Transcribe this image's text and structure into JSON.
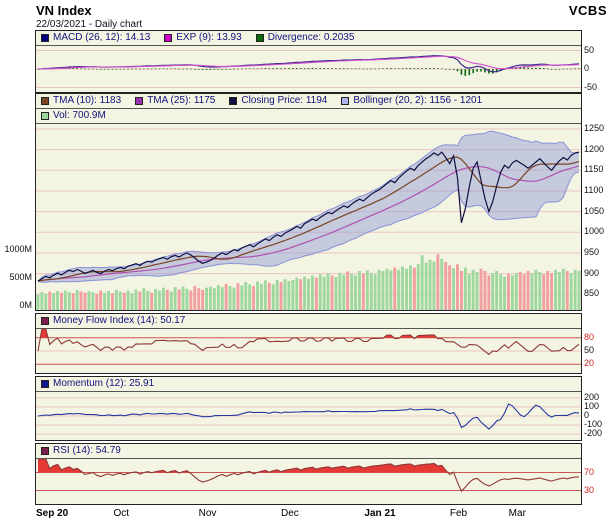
{
  "header": {
    "title": "VN Index",
    "subtitle": "22/03/2021 - Daily chart",
    "brand": "VCBS"
  },
  "x_axis": {
    "labels": [
      {
        "text": "Sep 20",
        "bold": true,
        "index": 0
      },
      {
        "text": "Oct",
        "bold": false,
        "index": 22
      },
      {
        "text": "Nov",
        "bold": false,
        "index": 44
      },
      {
        "text": "Dec",
        "bold": false,
        "index": 65
      },
      {
        "text": "Jan 21",
        "bold": true,
        "index": 88
      },
      {
        "text": "Feb",
        "bold": false,
        "index": 108
      },
      {
        "text": "Mar",
        "bold": false,
        "index": 123
      }
    ]
  },
  "chart_data": {
    "type": "line",
    "title": "VN Index - Daily chart",
    "as_of": "22/03/2021",
    "n_points": 139,
    "close": [
      882,
      888,
      893,
      890,
      896,
      901,
      897,
      903,
      908,
      905,
      910,
      906,
      900,
      904,
      908,
      903,
      900,
      906,
      910,
      907,
      912,
      915,
      912,
      918,
      921,
      924,
      920,
      926,
      930,
      928,
      933,
      936,
      939,
      935,
      941,
      944,
      940,
      946,
      950,
      945,
      938,
      930,
      925,
      928,
      932,
      938,
      945,
      950,
      946,
      952,
      958,
      955,
      962,
      966,
      970,
      965,
      972,
      978,
      984,
      980,
      988,
      994,
      990,
      998,
      1003,
      1008,
      1014,
      1010,
      1021,
      1026,
      1032,
      1028,
      1036,
      1042,
      1048,
      1045,
      1052,
      1058,
      1064,
      1060,
      1068,
      1075,
      1080,
      1076,
      1084,
      1092,
      1098,
      1103,
      1110,
      1118,
      1125,
      1120,
      1131,
      1140,
      1148,
      1155,
      1150,
      1162,
      1170,
      1178,
      1184,
      1192,
      1186,
      1194,
      1181,
      1166,
      1185,
      1131,
      1023,
      1057,
      1110,
      1155,
      1170,
      1126,
      1082,
      1050,
      1075,
      1112,
      1145,
      1162,
      1155,
      1168,
      1174,
      1168,
      1162,
      1155,
      1162,
      1170,
      1178,
      1168,
      1158,
      1150,
      1162,
      1173,
      1181,
      1175,
      1186,
      1192,
      1194
    ],
    "volume_millions": [
      280,
      320,
      290,
      330,
      300,
      340,
      310,
      350,
      320,
      300,
      360,
      330,
      310,
      340,
      320,
      290,
      350,
      310,
      340,
      300,
      360,
      330,
      310,
      345,
      300,
      370,
      330,
      390,
      340,
      310,
      380,
      350,
      400,
      360,
      330,
      410,
      370,
      420,
      380,
      350,
      430,
      390,
      360,
      400,
      420,
      390,
      450,
      410,
      470,
      430,
      400,
      480,
      440,
      500,
      460,
      430,
      510,
      470,
      530,
      490,
      460,
      540,
      500,
      550,
      520,
      540,
      580,
      550,
      600,
      560,
      620,
      580,
      640,
      600,
      660,
      620,
      590,
      670,
      630,
      690,
      650,
      620,
      700,
      660,
      710,
      670,
      640,
      720,
      700,
      740,
      710,
      760,
      720,
      780,
      740,
      800,
      760,
      820,
      980,
      850,
      900,
      870,
      1000,
      920,
      860,
      800,
      750,
      820,
      700,
      760,
      650,
      720,
      680,
      740,
      700,
      620,
      660,
      700,
      640,
      600,
      650,
      620,
      660,
      680,
      640,
      700,
      660,
      720,
      680,
      640,
      700,
      660,
      720,
      680,
      740,
      700,
      660,
      720,
      701
    ],
    "series_colors": {
      "macd": "#3c2a8c",
      "exp": "#d050d0",
      "divergence": "#0a6a0a",
      "close": "#101040",
      "tma10": "#7a4522",
      "tma25": "#b050b0",
      "bollinger_fill": "rgba(140,150,216,0.45)",
      "bollinger_edge": "#8892d8",
      "volume_up": "#9fd89f",
      "volume_down": "#f0a0a0",
      "mfi": "#8c3838",
      "momentum": "#2838a0",
      "rsi": "#8c3838",
      "fill_alert": "#e53935",
      "grid": "#ecc4c4",
      "grid_warn": "#cc5555"
    },
    "panels": {
      "macd": {
        "legend": [
          {
            "key": "macd",
            "label": "MACD (26, 12): 14.13",
            "color": "#000080"
          },
          {
            "key": "exp",
            "label": "EXP (9): 13.93",
            "color": "#cc00cc"
          },
          {
            "key": "divergence",
            "label": "Divergence: 0.2035",
            "color": "#0a6a0a"
          }
        ],
        "y_ticks": [
          50,
          0,
          -50
        ],
        "warn_ticks": [],
        "y_range": [
          -62,
          62
        ]
      },
      "price": {
        "legend_row1": [
          {
            "key": "tma10",
            "label": "TMA (10): 1183",
            "color": "#7a4522"
          },
          {
            "key": "tma25",
            "label": "TMA (25): 1175",
            "color": "#9b30b0"
          },
          {
            "key": "close",
            "label": "Closing Price: 1194",
            "color": "#101040"
          },
          {
            "key": "bollinger",
            "label": "Bollinger (20, 2): 1156 - 1201",
            "color": "#aab4e6"
          }
        ],
        "legend_row2": [
          {
            "key": "volume",
            "label": "Vol: 700.9M",
            "color": "#9fd89f"
          }
        ],
        "y_ticks": [
          1250,
          1200,
          1150,
          1100,
          1050,
          1000,
          950,
          900,
          850
        ],
        "warn_ticks": [],
        "y_range": [
          812,
          1262
        ],
        "volume_ticks": [
          {
            "label": "1000M",
            "value": 1000
          },
          {
            "label": "500M",
            "value": 500
          },
          {
            "label": "0M",
            "value": 0
          }
        ],
        "volume_scale_max": 1000,
        "volume_area_fraction": 0.3
      },
      "mfi": {
        "legend": [
          {
            "key": "mfi",
            "label": "Money Flow Index (14): 50.17",
            "color": "#7a1f4e"
          }
        ],
        "y_ticks": [
          80,
          50,
          20
        ],
        "warn_ticks": [
          80,
          20
        ],
        "y_range": [
          0,
          100
        ],
        "upper": 80,
        "lower": 20
      },
      "momentum": {
        "legend": [
          {
            "key": "momentum",
            "label": "Momentum (12): 25.91",
            "color": "#101a8c"
          }
        ],
        "y_ticks": [
          200,
          100,
          0,
          -100,
          -200
        ],
        "warn_ticks": [],
        "y_range": [
          -265,
          265
        ]
      },
      "rsi": {
        "legend": [
          {
            "key": "rsi",
            "label": "RSI (14): 54.79",
            "color": "#7a1f4e"
          }
        ],
        "y_ticks": [
          70,
          30
        ],
        "warn_ticks": [
          70,
          30
        ],
        "y_range": [
          0,
          100
        ],
        "upper": 70,
        "lower": 30
      }
    },
    "last_values": {
      "macd": 14.13,
      "exp": 13.93,
      "divergence": 0.2035,
      "tma10": 1183,
      "tma25": 1175,
      "close": 1194,
      "bollinger_lower": 1156,
      "bollinger_upper": 1201,
      "volume": "700.9M",
      "mfi": 50.17,
      "momentum": 25.91,
      "rsi": 54.79
    }
  }
}
